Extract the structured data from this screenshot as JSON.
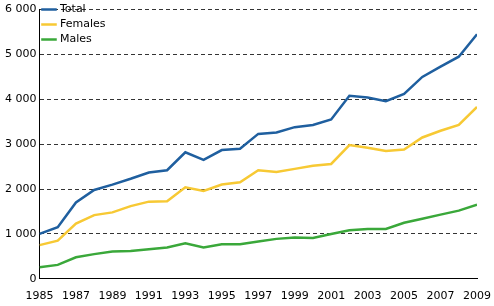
{
  "chart_data": {
    "type": "line",
    "x": [
      1985,
      1986,
      1987,
      1988,
      1989,
      1990,
      1991,
      1992,
      1993,
      1994,
      1995,
      1996,
      1997,
      1998,
      1999,
      2000,
      2001,
      2002,
      2003,
      2004,
      2005,
      2006,
      2007,
      2008,
      2009
    ],
    "series": [
      {
        "name": "Total",
        "color": "#1f5f9f",
        "values": [
          1000,
          1150,
          1700,
          1980,
          2100,
          2230,
          2370,
          2420,
          2820,
          2650,
          2870,
          2900,
          3230,
          3260,
          3380,
          3430,
          3550,
          4080,
          4040,
          3960,
          4120,
          4500,
          4730,
          4950,
          5450
        ]
      },
      {
        "name": "Females",
        "color": "#f7c934",
        "values": [
          750,
          850,
          1230,
          1420,
          1480,
          1620,
          1720,
          1730,
          2040,
          1960,
          2100,
          2150,
          2420,
          2380,
          2450,
          2520,
          2560,
          2980,
          2920,
          2850,
          2880,
          3150,
          3300,
          3430,
          3830
        ]
      },
      {
        "name": "Males",
        "color": "#3aa83a",
        "values": [
          260,
          310,
          480,
          550,
          610,
          620,
          660,
          700,
          790,
          700,
          770,
          770,
          830,
          890,
          920,
          910,
          1000,
          1080,
          1110,
          1110,
          1250,
          1340,
          1430,
          1520,
          1650
        ]
      }
    ],
    "xlim": [
      1985,
      2009
    ],
    "xticks": [
      1985,
      1987,
      1989,
      1991,
      1993,
      1995,
      1997,
      1999,
      2001,
      2003,
      2005,
      2007,
      2009
    ],
    "ylim": [
      0,
      6000
    ],
    "yticks": [
      0,
      {
        "value": 1000,
        "label": "1 000"
      },
      {
        "value": 2000,
        "label": "2 000"
      },
      {
        "value": 3000,
        "label": "3 000"
      },
      {
        "value": 4000,
        "label": "4 000"
      },
      {
        "value": 5000,
        "label": "5 000"
      },
      {
        "value": 6000,
        "label": "6 000"
      }
    ],
    "grid": true,
    "legend": "upper left"
  }
}
